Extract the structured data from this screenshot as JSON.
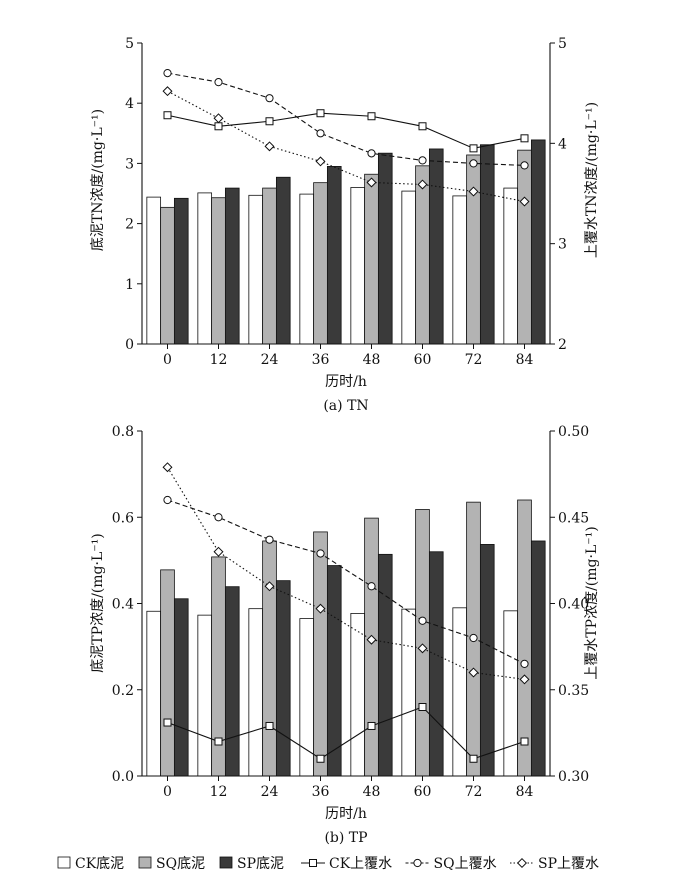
{
  "chart_data": [
    {
      "type": "bar+line",
      "panel_label": "(a) TN",
      "xlabel": "历时/h",
      "ylabel_left": "底泥TN浓度/(mg·L⁻¹)",
      "ylabel_right": "上覆水TN浓度/(mg·L⁻¹)",
      "categories": [
        "0",
        "12",
        "24",
        "36",
        "48",
        "60",
        "72",
        "84"
      ],
      "ylim_left": [
        0,
        5
      ],
      "yticks_left": [
        "0",
        "1",
        "2",
        "3",
        "4",
        "5"
      ],
      "ylim_right": [
        2,
        5
      ],
      "yticks_right": [
        "2",
        "3",
        "4",
        "5"
      ],
      "bar_series": [
        {
          "name": "CK底泥",
          "values": [
            2.44,
            2.51,
            2.47,
            2.49,
            2.6,
            2.54,
            2.46,
            2.59
          ]
        },
        {
          "name": "SQ底泥",
          "values": [
            2.27,
            2.43,
            2.59,
            2.68,
            2.82,
            2.96,
            3.14,
            3.22
          ]
        },
        {
          "name": "SP底泥",
          "values": [
            2.42,
            2.59,
            2.77,
            2.95,
            3.17,
            3.24,
            3.31,
            3.39
          ]
        }
      ],
      "line_series": [
        {
          "name": "CK上覆水",
          "values": [
            4.28,
            4.17,
            4.22,
            4.3,
            4.27,
            4.17,
            3.95,
            4.05
          ]
        },
        {
          "name": "SQ上覆水",
          "values": [
            4.7,
            4.61,
            4.45,
            4.1,
            3.9,
            3.83,
            3.8,
            3.78
          ]
        },
        {
          "name": "SP上覆水",
          "values": [
            4.52,
            4.25,
            3.97,
            3.82,
            3.61,
            3.59,
            3.52,
            3.42
          ]
        }
      ]
    },
    {
      "type": "bar+line",
      "panel_label": "(b) TP",
      "xlabel": "历时/h",
      "ylabel_left": "底泥TP浓度/(mg·L⁻¹)",
      "ylabel_right": "上覆水TP浓度/(mg·L⁻¹)",
      "categories": [
        "0",
        "12",
        "24",
        "36",
        "48",
        "60",
        "72",
        "84"
      ],
      "ylim_left": [
        0,
        0.8
      ],
      "yticks_left": [
        "0.0",
        "0.2",
        "0.4",
        "0.6",
        "0.8"
      ],
      "ylim_right": [
        0.3,
        0.5
      ],
      "yticks_right": [
        "0.30",
        "0.35",
        "0.40",
        "0.45",
        "0.50"
      ],
      "bar_series": [
        {
          "name": "CK底泥",
          "values": [
            0.382,
            0.373,
            0.388,
            0.365,
            0.377,
            0.387,
            0.39,
            0.383
          ]
        },
        {
          "name": "SQ底泥",
          "values": [
            0.478,
            0.508,
            0.545,
            0.566,
            0.598,
            0.618,
            0.635,
            0.64
          ]
        },
        {
          "name": "SP底泥",
          "values": [
            0.411,
            0.439,
            0.453,
            0.488,
            0.514,
            0.52,
            0.537,
            0.545
          ]
        }
      ],
      "line_series": [
        {
          "name": "CK上覆水",
          "values": [
            0.331,
            0.32,
            0.329,
            0.31,
            0.329,
            0.34,
            0.31,
            0.32
          ]
        },
        {
          "name": "SQ上覆水",
          "values": [
            0.46,
            0.45,
            0.437,
            0.429,
            0.41,
            0.39,
            0.38,
            0.365
          ]
        },
        {
          "name": "SP上覆水",
          "values": [
            0.479,
            0.43,
            0.41,
            0.397,
            0.379,
            0.374,
            0.36,
            0.356
          ]
        }
      ]
    }
  ],
  "legend": {
    "items": [
      {
        "label": "CK底泥",
        "kind": "bar",
        "fill": "#ffffff"
      },
      {
        "label": "SQ底泥",
        "kind": "bar",
        "fill": "#b3b3b3"
      },
      {
        "label": "SP底泥",
        "kind": "bar",
        "fill": "#3a3a3a"
      },
      {
        "label": "CK上覆水",
        "kind": "line",
        "marker": "square",
        "dash": "solid"
      },
      {
        "label": "SQ上覆水",
        "kind": "line",
        "marker": "circle",
        "dash": "dashed"
      },
      {
        "label": "SP上覆水",
        "kind": "line",
        "marker": "diamond",
        "dash": "dotted"
      }
    ]
  },
  "colors": {
    "ck_bar": "#ffffff",
    "sq_bar": "#b3b3b3",
    "sp_bar": "#3a3a3a",
    "axis": "#111111"
  }
}
